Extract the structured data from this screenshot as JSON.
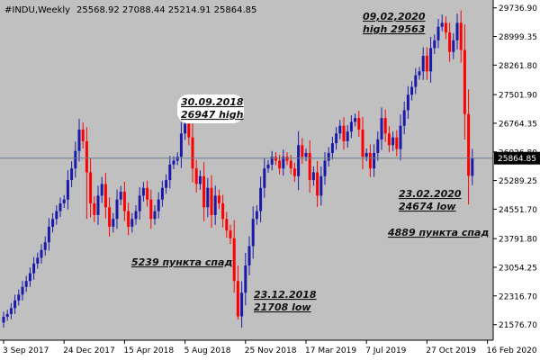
{
  "header": {
    "symbol_label": "#INDU,Weekly",
    "ohlc": "25568.92 27088.44 25214.91 25864.85"
  },
  "colors": {
    "background": "#c0c0c0",
    "bull": "#1a1aa8",
    "bear": "#ff0000",
    "axis": "#000000",
    "price_line": "#6a7b8c",
    "price_tag_bg": "#000000",
    "price_tag_text": "#ffffff",
    "annotation_bg": "#ffffff"
  },
  "chart_data": {
    "type": "candlestick",
    "title": "#INDU,Weekly",
    "ylim": [
      21176,
      29939
    ],
    "y_ticks": [
      {
        "value": 29736.9,
        "label": "29736.90"
      },
      {
        "value": 28999.35,
        "label": "28999.35"
      },
      {
        "value": 28261.8,
        "label": "28261.80"
      },
      {
        "value": 27501.9,
        "label": "27501.90"
      },
      {
        "value": 26764.35,
        "label": "26764.35"
      },
      {
        "value": 26026.8,
        "label": "26026.80"
      },
      {
        "value": 25289.25,
        "label": "25289.25"
      },
      {
        "value": 24551.7,
        "label": "24551.70"
      },
      {
        "value": 23791.8,
        "label": "23791.80"
      },
      {
        "value": 23054.25,
        "label": "23054.25"
      },
      {
        "value": 22316.7,
        "label": "22316.70"
      },
      {
        "value": 21576.7,
        "label": "21576.70"
      }
    ],
    "x_ticks": [
      {
        "index": 0,
        "label": "3 Sep 2017"
      },
      {
        "index": 16,
        "label": "24 Dec 2017"
      },
      {
        "index": 32,
        "label": "15 Apr 2018"
      },
      {
        "index": 48,
        "label": "5 Aug 2018"
      },
      {
        "index": 64,
        "label": "25 Nov 2018"
      },
      {
        "index": 80,
        "label": "17 Mar 2019"
      },
      {
        "index": 96,
        "label": "7 Jul 2019"
      },
      {
        "index": 112,
        "label": "27 Oct 2019"
      },
      {
        "index": 128,
        "label": "16 Feb 2020"
      }
    ],
    "current_price": {
      "value": 25864.85,
      "label": "25864.85"
    },
    "closes": [
      21780,
      21850,
      22000,
      22200,
      22350,
      22550,
      22700,
      22900,
      23150,
      23300,
      23500,
      23700,
      24100,
      24300,
      24500,
      24700,
      24800,
      25300,
      25600,
      26050,
      26600,
      26300,
      25500,
      24700,
      24400,
      24900,
      25200,
      24600,
      24100,
      24300,
      24800,
      25000,
      24500,
      24100,
      24300,
      24500,
      24900,
      25100,
      24800,
      24300,
      24500,
      24800,
      25100,
      25300,
      25700,
      25800,
      25900,
      26500,
      26750,
      26400,
      25600,
      25200,
      25400,
      24600,
      25100,
      24400,
      24900,
      24700,
      24300,
      24000,
      23800,
      22700,
      21790,
      22400,
      23100,
      23600,
      24300,
      24500,
      25100,
      25600,
      25700,
      25900,
      25800,
      25600,
      25900,
      25800,
      25600,
      25400,
      26200,
      25900,
      26000,
      25300,
      25500,
      24900,
      25400,
      25800,
      26000,
      26250,
      26500,
      26700,
      26300,
      26550,
      26800,
      26900,
      26600,
      25900,
      26000,
      25600,
      26000,
      26350,
      26900,
      26500,
      26200,
      26400,
      26100,
      26700,
      27100,
      27500,
      27700,
      28000,
      28100,
      28500,
      28100,
      28700,
      28900,
      29250,
      29350,
      29100,
      28600,
      28900,
      29350,
      28650,
      27000,
      25409,
      25864.85
    ],
    "lows_override": {
      "22": 24300,
      "61": 22400,
      "62": 21708,
      "123": 24674
    },
    "highs_override": {
      "48": 26947,
      "116": 29563
    },
    "annotations": [
      {
        "id": "peak-2018",
        "lines": [
          "30.09.2018",
          "26947  high"
        ],
        "white_bg": true
      },
      {
        "id": "drop-2018",
        "lines": [
          "5239 пункта спад"
        ],
        "white_bg": false
      },
      {
        "id": "low-2018",
        "lines": [
          "23.12.2018",
          "21708 low"
        ],
        "white_bg": false
      },
      {
        "id": "peak-2020",
        "lines": [
          "09,02,2020",
          "high 29563"
        ],
        "white_bg": false
      },
      {
        "id": "low-2020",
        "lines": [
          "23.02.2020",
          "24674 low"
        ],
        "white_bg": false
      },
      {
        "id": "drop-2020",
        "lines": [
          "4889 пункта спад"
        ],
        "white_bg": false
      }
    ]
  }
}
